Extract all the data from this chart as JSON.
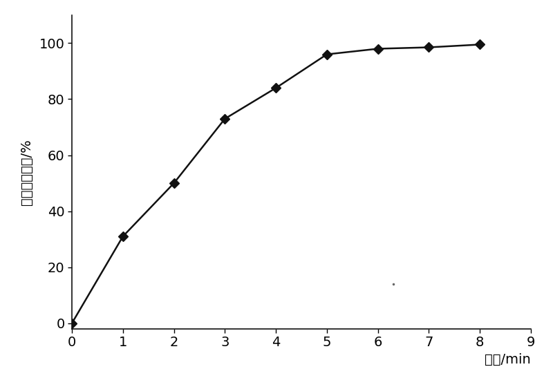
{
  "x": [
    0,
    1,
    2,
    3,
    4,
    5,
    6,
    7,
    8
  ],
  "y": [
    0,
    31,
    50,
    73,
    84,
    96,
    98,
    98.5,
    99.5
  ],
  "xlim": [
    0,
    9
  ],
  "ylim": [
    -2,
    110
  ],
  "xticks": [
    0,
    1,
    2,
    3,
    4,
    5,
    6,
    7,
    8,
    9
  ],
  "yticks": [
    0,
    20,
    40,
    60,
    80,
    100
  ],
  "xlabel": "时间/min",
  "ylabel": "硝基苯去除率/%",
  "line_color": "#111111",
  "marker": "D",
  "marker_size": 7,
  "marker_color": "#111111",
  "line_width": 1.8,
  "background_color": "#ffffff",
  "tick_fontsize": 14,
  "label_fontsize": 14,
  "dot_x": 6.3,
  "dot_y": 14
}
